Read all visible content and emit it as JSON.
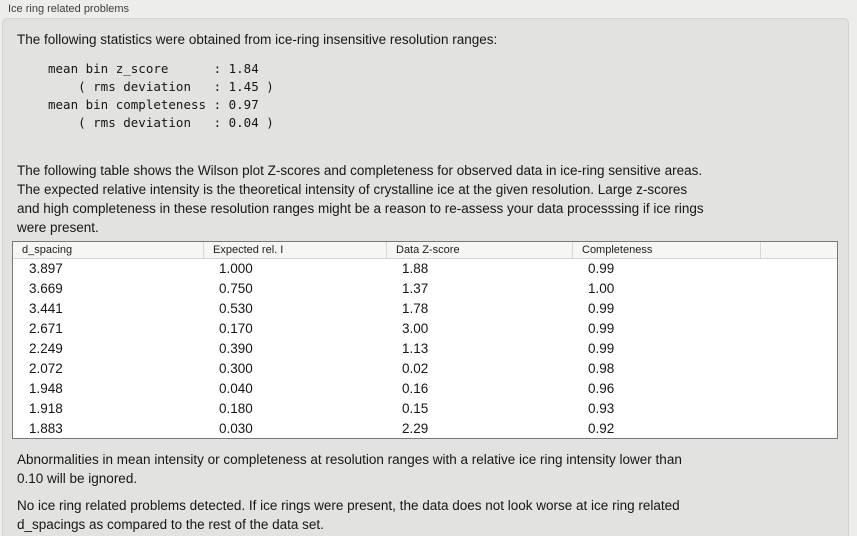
{
  "panel": {
    "group_label": "Ice ring related problems"
  },
  "intro_text": "The following statistics were obtained from ice-ring insensitive resolution ranges:",
  "stats_block": {
    "lines": [
      "mean bin z_score      : 1.84",
      "    ( rms deviation   : 1.45 )",
      "mean bin completeness : 0.97",
      "    ( rms deviation   : 0.04 )"
    ],
    "values": {
      "mean_bin_z_score": "1.84",
      "z_score_rms_deviation": "1.45",
      "mean_bin_completeness": "0.97",
      "completeness_rms_deviation": "0.04"
    }
  },
  "description": {
    "lines": [
      "The following table shows the Wilson plot Z-scores and completeness for observed data in ice-ring sensitive areas.",
      "The expected relative intensity is the theoretical intensity of crystalline ice at the given resolution. Large z-scores",
      "and high completeness in these resolution ranges might be a reason to re-assess your data processsing if ice rings",
      "were present."
    ]
  },
  "table": {
    "columns": [
      "d_spacing",
      "Expected rel. I",
      "Data Z-score",
      "Completeness"
    ],
    "rows": [
      [
        "3.897",
        "1.000",
        "1.88",
        "0.99"
      ],
      [
        "3.669",
        "0.750",
        "1.37",
        "1.00"
      ],
      [
        "3.441",
        "0.530",
        "1.78",
        "0.99"
      ],
      [
        "2.671",
        "0.170",
        "3.00",
        "0.99"
      ],
      [
        "2.249",
        "0.390",
        "1.13",
        "0.99"
      ],
      [
        "2.072",
        "0.300",
        "0.02",
        "0.98"
      ],
      [
        "1.948",
        "0.040",
        "0.16",
        "0.96"
      ],
      [
        "1.918",
        "0.180",
        "0.15",
        "0.93"
      ],
      [
        "1.883",
        "0.030",
        "2.29",
        "0.92"
      ]
    ]
  },
  "notes": {
    "ignore_note_lines": [
      "Abnormalities in mean intensity or completeness at resolution ranges with a relative ice ring intensity lower than",
      "0.10 will be ignored."
    ],
    "conclusion_lines": [
      "No ice ring related problems detected. If ice rings were present, the data does not look worse at ice ring related",
      "d_spacings as compared to the rest of the data set."
    ]
  },
  "colors": {
    "page_background": "#ededec",
    "panel_background": "#e2e2e0",
    "panel_border": "#d2d2cf",
    "table_border": "#797979",
    "table_header_background": "#f6f6f5",
    "table_body_background": "#ffffff",
    "text": "#161616",
    "label_text": "#3e3e3e"
  }
}
